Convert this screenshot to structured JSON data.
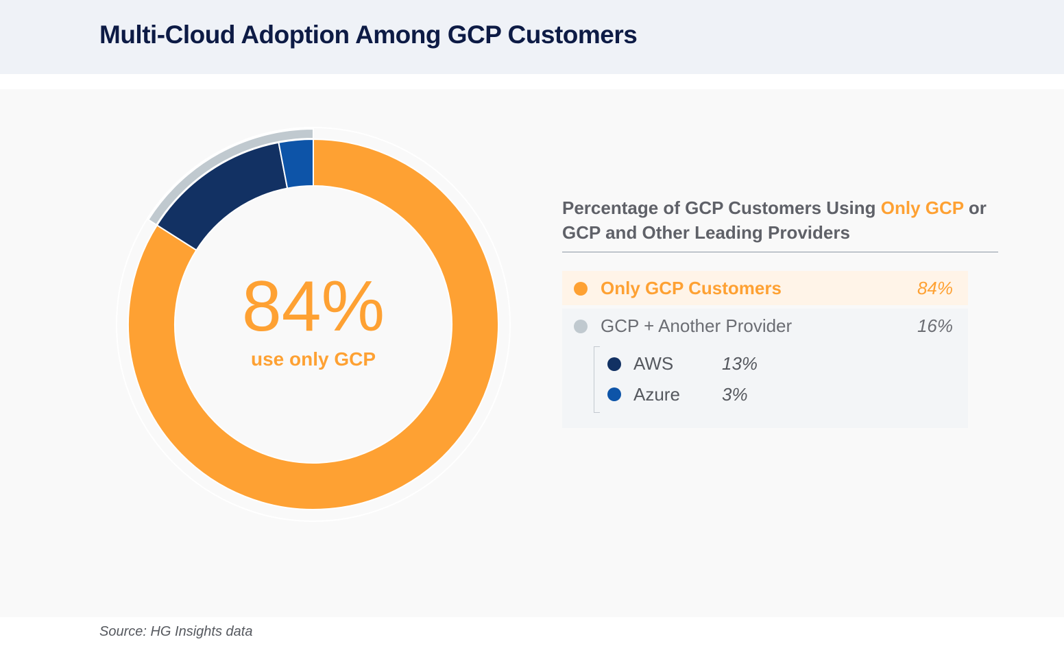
{
  "title": "Multi-Cloud Adoption Among GCP Customers",
  "center": {
    "value": "84%",
    "caption": "use only GCP"
  },
  "legend": {
    "title_part1": "Percentage of GCP Customers Using ",
    "title_highlight": "Only GCP",
    "title_part2": " or GCP and Other Leading Providers",
    "items": [
      {
        "label": "Only GCP Customers",
        "value": "84%",
        "color": "#fea133"
      },
      {
        "label": "GCP + Another Provider",
        "value": "16%",
        "color": "#c0c9cf"
      },
      {
        "label": "AWS",
        "value": "13%",
        "color": "#123163"
      },
      {
        "label": "Azure",
        "value": "3%",
        "color": "#0d54a8"
      }
    ]
  },
  "source": "Source: HG Insights data",
  "chart_data": {
    "type": "pie",
    "title": "Multi-Cloud Adoption Among GCP Customers",
    "donut": true,
    "slices": [
      {
        "name": "Only GCP Customers",
        "value": 84,
        "color": "#fea133"
      },
      {
        "name": "AWS",
        "value": 13,
        "color": "#123163"
      },
      {
        "name": "Azure",
        "value": 3,
        "color": "#0d54a8"
      }
    ],
    "outer_group": {
      "name": "GCP + Another Provider",
      "value": 16,
      "color": "#c0c9cf"
    }
  }
}
